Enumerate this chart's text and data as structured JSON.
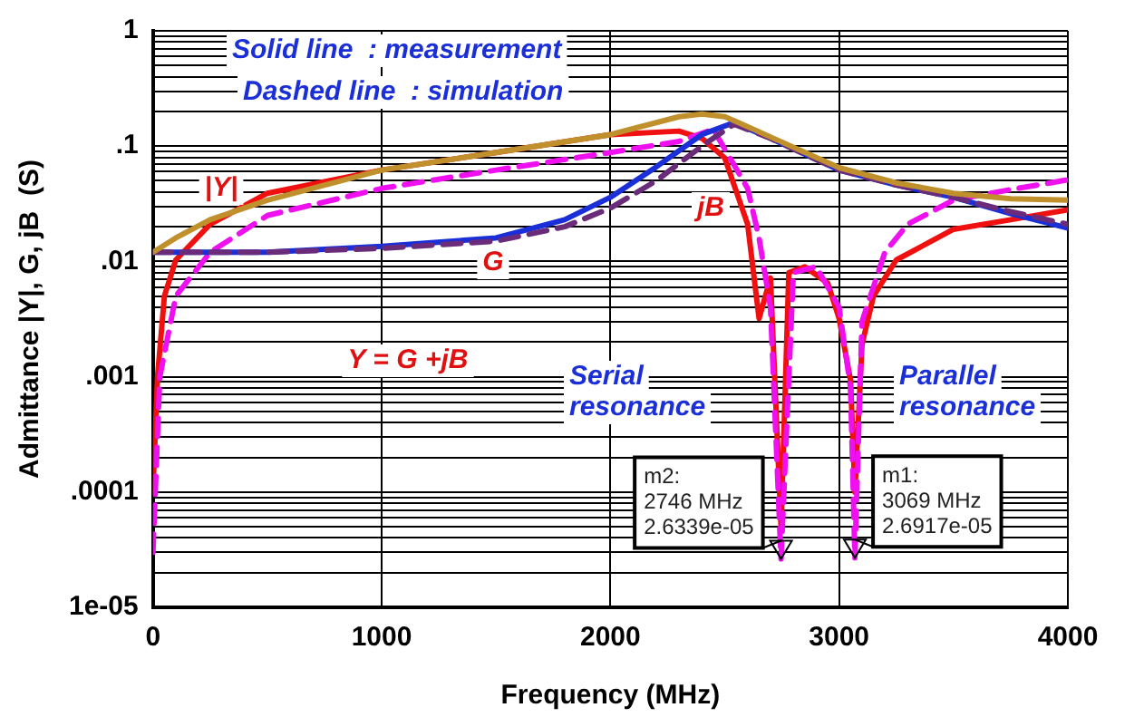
{
  "chart_data": {
    "type": "line",
    "xlabel": "Frequency (MHz)",
    "ylabel": "Admittance |Y|, G, jB  (S)",
    "xlim": [
      0,
      4000
    ],
    "xticks": [
      0,
      1000,
      2000,
      3000,
      4000
    ],
    "ylim": [
      1e-05,
      1
    ],
    "log": "y",
    "grid": true,
    "marker": "none",
    "yticks": [
      {
        "value": 1e-05,
        "label": "1e-05"
      },
      {
        "value": 2e-05,
        "label": null
      },
      {
        "value": 3e-05,
        "label": null
      },
      {
        "value": 4e-05,
        "label": null
      },
      {
        "value": 5e-05,
        "label": null
      },
      {
        "value": 6e-05,
        "label": null
      },
      {
        "value": 7e-05,
        "label": null
      },
      {
        "value": 8e-05,
        "label": null
      },
      {
        "value": 9e-05,
        "label": null
      },
      {
        "value": 0.0001,
        "label": ".0001"
      },
      {
        "value": 0.0002,
        "label": null
      },
      {
        "value": 0.0003,
        "label": null
      },
      {
        "value": 0.0004,
        "label": null
      },
      {
        "value": 0.0005,
        "label": null
      },
      {
        "value": 0.0006,
        "label": null
      },
      {
        "value": 0.0007,
        "label": null
      },
      {
        "value": 0.0008,
        "label": null
      },
      {
        "value": 0.0009,
        "label": null
      },
      {
        "value": 0.001,
        "label": ".001"
      },
      {
        "value": 0.002,
        "label": null
      },
      {
        "value": 0.003,
        "label": null
      },
      {
        "value": 0.004,
        "label": null
      },
      {
        "value": 0.005,
        "label": null
      },
      {
        "value": 0.006,
        "label": null
      },
      {
        "value": 0.007,
        "label": null
      },
      {
        "value": 0.008,
        "label": null
      },
      {
        "value": 0.009,
        "label": null
      },
      {
        "value": 0.01,
        "label": ".01"
      },
      {
        "value": 0.02,
        "label": null
      },
      {
        "value": 0.03,
        "label": null
      },
      {
        "value": 0.04,
        "label": null
      },
      {
        "value": 0.05,
        "label": null
      },
      {
        "value": 0.06,
        "label": null
      },
      {
        "value": 0.07,
        "label": null
      },
      {
        "value": 0.08,
        "label": null
      },
      {
        "value": 0.09,
        "label": null
      },
      {
        "value": 0.1,
        "label": ".1"
      },
      {
        "value": 0.2,
        "label": null
      },
      {
        "value": 0.3,
        "label": null
      },
      {
        "value": 0.4,
        "label": null
      },
      {
        "value": 0.5,
        "label": null
      },
      {
        "value": 0.6,
        "label": null
      },
      {
        "value": 0.7,
        "label": null
      },
      {
        "value": 0.8,
        "label": null
      },
      {
        "value": 0.9,
        "label": null
      },
      1
    ],
    "series": [
      {
        "type": "line",
        "color": "#c0902c",
        "line_style": "solid",
        "x": [
          0,
          100,
          250,
          500,
          1000,
          1500,
          2000,
          2300,
          2400,
          2500,
          2560,
          2700,
          3000,
          3250,
          3500,
          3750,
          4000
        ],
        "values": [
          0.012,
          0.016,
          0.023,
          0.034,
          0.062,
          0.088,
          0.126,
          0.18,
          0.19,
          0.18,
          0.16,
          0.12,
          0.065,
          0.048,
          0.039,
          0.035,
          0.034
        ]
      },
      {
        "type": "line",
        "color": "#6a2c7a",
        "line_style": "dashed",
        "x": [
          0,
          500,
          1000,
          1500,
          1800,
          2000,
          2200,
          2400,
          2540,
          2700,
          3000,
          3250,
          3500,
          3750,
          4000
        ],
        "values": [
          0.012,
          0.012,
          0.013,
          0.015,
          0.02,
          0.029,
          0.05,
          0.1,
          0.155,
          0.117,
          0.062,
          0.046,
          0.036,
          0.027,
          0.021
        ]
      },
      {
        "type": "line",
        "color": "#1a2fd8",
        "line_style": "solid",
        "x": [
          0,
          500,
          1000,
          1500,
          1800,
          2000,
          2200,
          2400,
          2540,
          2700,
          3000,
          3250,
          3500,
          3750,
          4000
        ],
        "values": [
          0.012,
          0.012,
          0.0135,
          0.016,
          0.023,
          0.036,
          0.066,
          0.126,
          0.16,
          0.117,
          0.062,
          0.046,
          0.036,
          0.026,
          0.0195
        ]
      },
      {
        "type": "line",
        "color": "#ee10ee",
        "line_style": "dashed",
        "x": [
          0,
          30,
          100,
          250,
          500,
          1000,
          1500,
          2000,
          2300,
          2450,
          2600,
          2650,
          2700,
          2746,
          2800,
          2900,
          3000,
          3050,
          3069,
          3100,
          3200,
          3300,
          3500,
          3750,
          4000
        ],
        "values": [
          3e-05,
          0.001,
          0.005,
          0.012,
          0.025,
          0.043,
          0.062,
          0.088,
          0.11,
          0.14,
          0.043,
          0.016,
          0.004,
          2.6339e-05,
          0.008,
          0.009,
          0.004,
          0.0008,
          2.6917e-05,
          0.003,
          0.012,
          0.021,
          0.034,
          0.042,
          0.051
        ]
      },
      {
        "type": "line",
        "color": "#f01010",
        "line_style": "solid",
        "x": [
          0,
          20,
          50,
          100,
          250,
          500,
          1000,
          1500,
          2000,
          2300,
          2400,
          2500,
          2600,
          2650,
          2700,
          2746,
          2780,
          2850,
          2950,
          3000,
          3050,
          3069,
          3100,
          3150,
          3250,
          3500,
          3750,
          4000
        ],
        "values": [
          0.0001,
          0.001,
          0.005,
          0.0103,
          0.021,
          0.039,
          0.062,
          0.088,
          0.126,
          0.135,
          0.117,
          0.079,
          0.021,
          0.0032,
          0.0072,
          5e-05,
          0.008,
          0.009,
          0.0065,
          0.0032,
          0.00093,
          0.0001,
          0.0019,
          0.005,
          0.0103,
          0.019,
          0.023,
          0.028
        ]
      }
    ],
    "annotations": [
      "Solid line  : measurement",
      "Dashed line  : simulation",
      "|Y|",
      "G",
      "jB",
      "Y = G +jB",
      "Serial\nresonance",
      "Parallel\nresonance",
      {
        "text": "m2:\n2746 MHz\n2.6339e-05",
        "x": 2746,
        "y": 2.6339e-05
      },
      {
        "text": "m1:\n3069 MHz\n2.6917e-05",
        "x": 3069,
        "y": 2.6917e-05
      }
    ]
  }
}
